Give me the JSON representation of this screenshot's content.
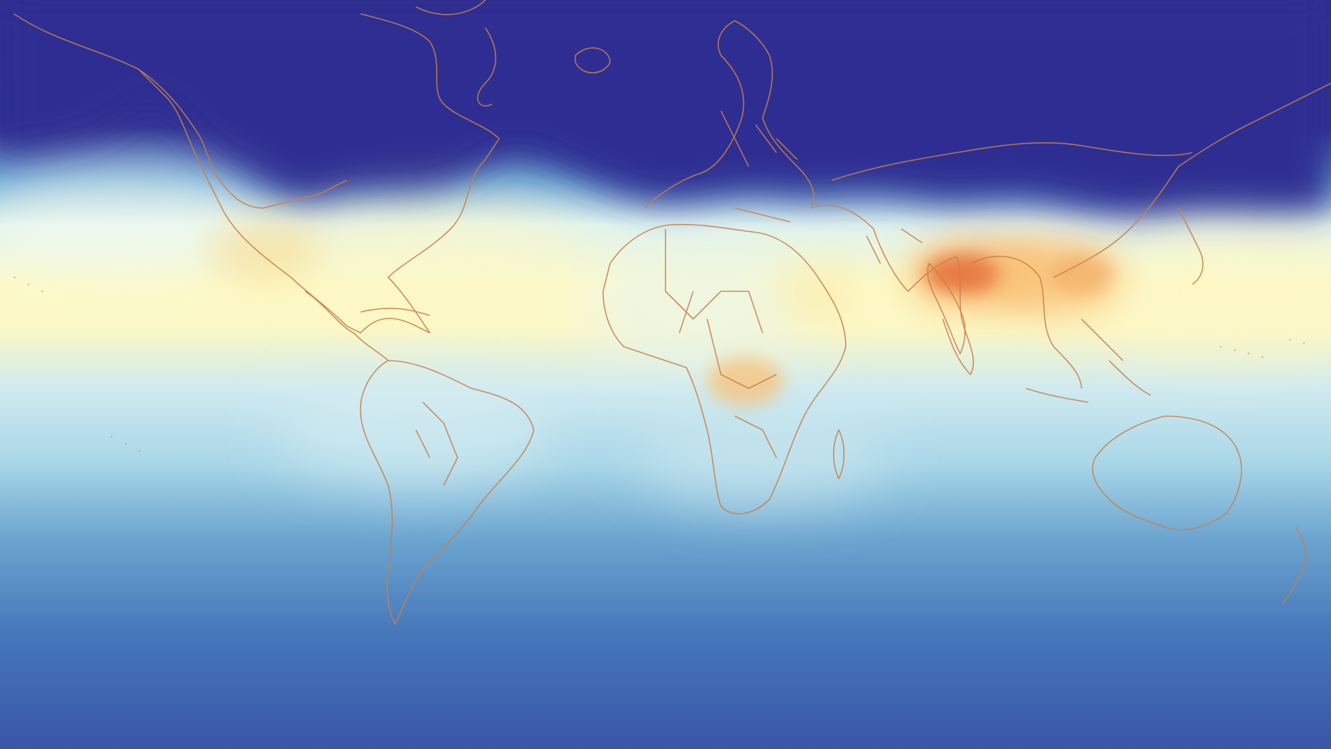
{
  "map": {
    "kind": "global-field-map",
    "projection": "equirectangular",
    "colormap": [
      "#2e2d8f",
      "#3f63b2",
      "#9fd3e6",
      "#fdf8c0",
      "#fdbe6c",
      "#e0653a"
    ],
    "coastline_color": "#c8804a",
    "legend_visible": false,
    "hotspots": [
      {
        "name": "indo-gangetic-plain",
        "intensity": 1.0
      },
      {
        "name": "southeast-asia",
        "intensity": 0.75
      },
      {
        "name": "central-africa",
        "intensity": 0.65
      },
      {
        "name": "mexico",
        "intensity": 0.45
      }
    ]
  }
}
